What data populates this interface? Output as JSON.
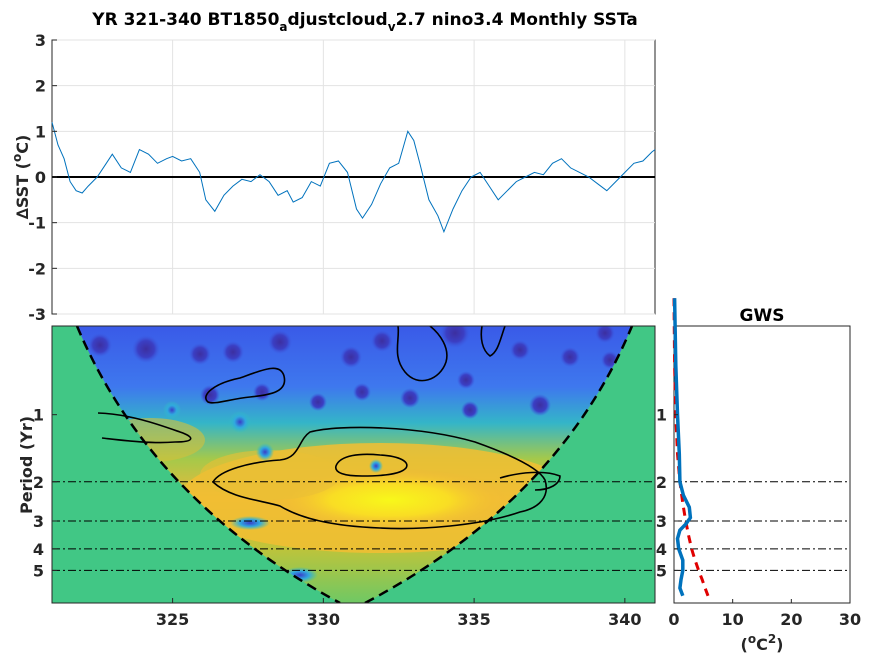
{
  "chart_data": [
    {
      "panel": "time-series",
      "type": "line",
      "title": {
        "part1": "YR 321-340 BT1850",
        "sub1": "a",
        "part2": "djustcloud",
        "sub2": "v",
        "part3": "2.7 nino3.4 Monthly SSTa"
      },
      "ylabel": "∆SST (°C)",
      "ylabel_parts": {
        "before": "∆SST (",
        "sup": "o",
        "after": "C)"
      },
      "xlim": [
        321,
        341
      ],
      "ylim": [
        -3,
        3
      ],
      "yticks": [
        "-3",
        "-2",
        "-1",
        "0",
        "1",
        "2",
        "3"
      ],
      "grid": true,
      "zero_line": true,
      "line_color": "#0072BD",
      "series": [
        {
          "x": [
            321.0,
            321.2,
            321.4,
            321.6,
            321.8,
            322.0,
            322.2,
            322.5,
            322.8,
            323.0,
            323.3,
            323.6,
            323.9,
            324.2,
            324.5,
            324.8,
            325.0,
            325.3,
            325.6,
            325.9,
            326.1,
            326.4,
            326.7,
            327.0,
            327.3,
            327.6,
            327.9,
            328.2,
            328.5,
            328.8,
            329.0,
            329.3,
            329.6,
            329.9,
            330.2,
            330.5,
            330.8,
            331.1,
            331.3,
            331.6,
            331.9,
            332.2,
            332.5,
            332.8,
            333.0,
            333.2,
            333.5,
            333.8,
            334.0,
            334.3,
            334.6,
            334.9,
            335.2,
            335.5,
            335.8,
            336.1,
            336.4,
            336.7,
            337.0,
            337.3,
            337.6,
            337.9,
            338.2,
            338.5,
            338.8,
            339.1,
            339.4,
            339.7,
            340.0,
            340.3,
            340.6,
            340.9,
            341.0
          ],
          "y": [
            1.2,
            0.7,
            0.4,
            -0.1,
            -0.3,
            -0.35,
            -0.2,
            0.0,
            0.3,
            0.5,
            0.2,
            0.1,
            0.6,
            0.5,
            0.3,
            0.4,
            0.45,
            0.35,
            0.4,
            0.1,
            -0.5,
            -0.75,
            -0.4,
            -0.2,
            -0.05,
            -0.1,
            0.05,
            -0.1,
            -0.4,
            -0.3,
            -0.55,
            -0.45,
            -0.1,
            -0.2,
            0.3,
            0.35,
            0.1,
            -0.7,
            -0.9,
            -0.6,
            -0.15,
            0.2,
            0.3,
            1.0,
            0.8,
            0.3,
            -0.5,
            -0.85,
            -1.2,
            -0.7,
            -0.3,
            0.0,
            0.1,
            -0.2,
            -0.5,
            -0.3,
            -0.1,
            0.0,
            0.1,
            0.05,
            0.3,
            0.4,
            0.2,
            0.1,
            0.0,
            -0.15,
            -0.3,
            -0.1,
            0.1,
            0.3,
            0.35,
            0.55,
            0.6
          ]
        }
      ]
    },
    {
      "panel": "wavelet-power",
      "type": "heatmap",
      "xlim": [
        321,
        341
      ],
      "xticks": [
        "325",
        "330",
        "335",
        "340"
      ],
      "ylabel": "Period (Yr)",
      "yticks": [
        "1",
        "2",
        "3",
        "4",
        "5"
      ],
      "period_lines": [
        2,
        3,
        4,
        5
      ],
      "colors": {
        "outside_cone": "#41C785",
        "low": "#3E64E6",
        "mid": "#30C3B0",
        "high": "#F5C22E",
        "max": "#F8F81A"
      }
    },
    {
      "panel": "global-wavelet-spectrum",
      "type": "line",
      "title": "GWS",
      "xlabel": "(°C²)",
      "xlabel_parts": {
        "before": "(",
        "sup1": "o",
        "mid": "C",
        "sup2": "2",
        "after": ")"
      },
      "xlim": [
        0,
        30
      ],
      "xticks": [
        "0",
        "10",
        "20",
        "30"
      ],
      "yticks": [
        "1",
        "2",
        "3",
        "4",
        "5"
      ],
      "period_lines": [
        2,
        3,
        4,
        5
      ],
      "series": [
        {
          "role": "power",
          "color": "#0072BD",
          "period": [
            0.3,
            0.6,
            1.0,
            1.5,
            2.0,
            2.3,
            2.6,
            2.9,
            3.1,
            3.3,
            3.6,
            4.0,
            4.5,
            5.0,
            5.5,
            6.0,
            6.5
          ],
          "power": [
            0.1,
            0.3,
            0.6,
            0.9,
            1.0,
            1.6,
            2.6,
            2.8,
            2.0,
            1.0,
            0.6,
            0.8,
            1.5,
            1.5,
            1.2,
            1.0,
            1.5
          ]
        },
        {
          "role": "significance",
          "color": "#E00000",
          "period": [
            0.3,
            0.6,
            1.0,
            1.5,
            2.0,
            2.5,
            3.0,
            3.5,
            4.0,
            4.5,
            5.0,
            5.5,
            6.0,
            6.5
          ],
          "power": [
            0.0,
            0.1,
            0.3,
            0.6,
            1.0,
            1.5,
            2.0,
            2.5,
            3.0,
            3.6,
            4.2,
            4.8,
            5.3,
            5.8
          ]
        }
      ]
    }
  ]
}
